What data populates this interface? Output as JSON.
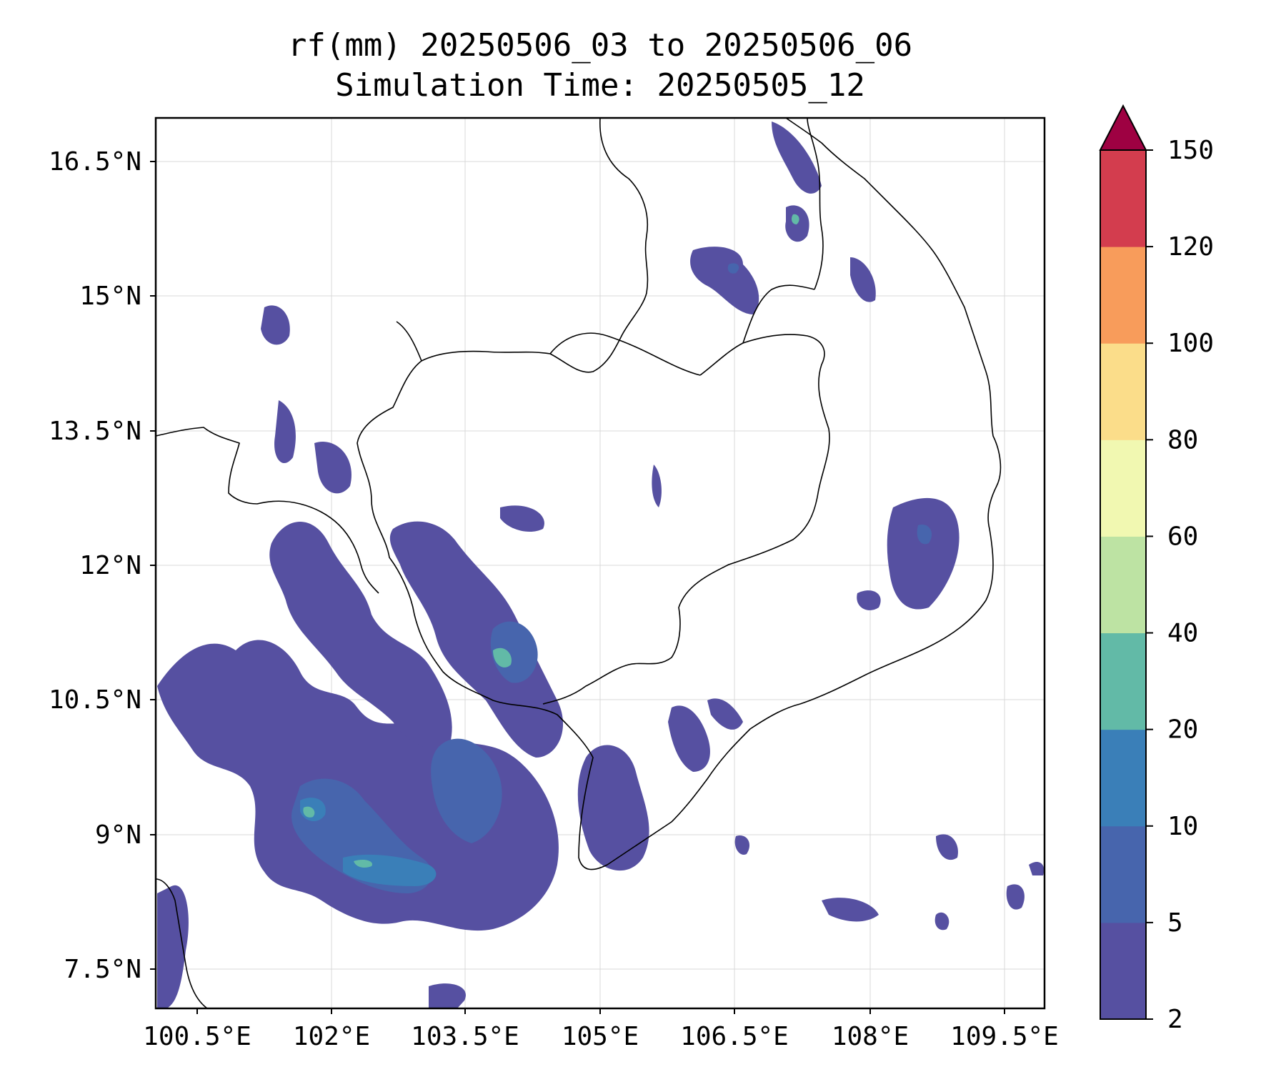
{
  "title": {
    "line1": "rf(mm) 20250506_03 to 20250506_06",
    "line2": "Simulation Time: 20250505_12"
  },
  "axes": {
    "x_ticks": [
      "100.5°E",
      "102°E",
      "103.5°E",
      "105°E",
      "106.5°E",
      "108°E",
      "109.5°E"
    ],
    "y_ticks": [
      "16.5°N",
      "15°N",
      "13.5°N",
      "12°N",
      "10.5°N",
      "9°N",
      "7.5°N"
    ],
    "grid": true
  },
  "colorbar": {
    "levels": [
      "2",
      "5",
      "10",
      "20",
      "40",
      "60",
      "80",
      "100",
      "120",
      "150"
    ],
    "colors": [
      "#5650a1",
      "#4765ad",
      "#3a7fb8",
      "#62baa7",
      "#bde3a3",
      "#f1f8b1",
      "#fbdd8a",
      "#f89c5b",
      "#d33d4e"
    ],
    "extend_color": "#9e0142"
  },
  "map_colors": {
    "rain_2_5": "#5650a1",
    "rain_5_10": "#4765ad",
    "rain_10_20": "#3a7fb8",
    "rain_20_40": "#62baa7"
  }
}
